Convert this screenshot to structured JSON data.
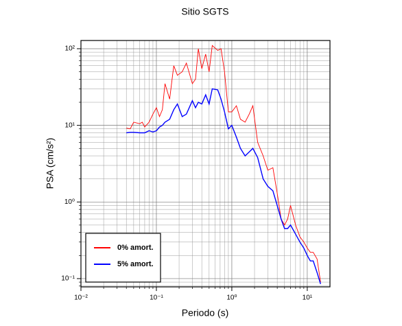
{
  "chart_data": {
    "type": "line",
    "title": "Sitio SGTS",
    "x_label": "Periodo (s)",
    "y_label": "PSA (cm/s²)",
    "log_x": true,
    "log_y": true,
    "grid": true,
    "legend": "lower left",
    "xlim": [
      0.01,
      20
    ],
    "ylim": [
      0.078,
      128
    ],
    "xticks": [
      {
        "value": 0.01,
        "label": "10⁻²"
      },
      {
        "value": 0.1,
        "label": "10⁻¹"
      },
      {
        "value": 1,
        "label": "10⁰"
      },
      {
        "value": 10,
        "label": "10¹"
      }
    ],
    "yticks": [
      {
        "value": 0.1,
        "label": "10⁻¹"
      },
      {
        "value": 1,
        "label": "10⁰"
      },
      {
        "value": 10,
        "label": "10¹"
      },
      {
        "value": 100,
        "label": "10²"
      }
    ],
    "x": [
      0.04,
      0.045,
      0.05,
      0.06,
      0.065,
      0.07,
      0.08,
      0.09,
      0.1,
      0.11,
      0.12,
      0.13,
      0.15,
      0.17,
      0.19,
      0.22,
      0.25,
      0.3,
      0.33,
      0.36,
      0.4,
      0.45,
      0.5,
      0.55,
      0.65,
      0.72,
      0.8,
      0.9,
      1.0,
      1.15,
      1.3,
      1.5,
      1.7,
      1.9,
      2.2,
      2.6,
      3,
      3.5,
      4,
      4.5,
      5,
      5.5,
      6,
      7,
      8,
      9,
      10,
      11,
      12,
      13.5,
      15
    ],
    "series": [
      {
        "name": "0% amort.",
        "color": "#ff0000",
        "values": [
          9.2,
          9,
          11,
          10.5,
          11,
          9.5,
          11,
          14,
          17,
          13,
          16,
          35,
          22,
          60,
          45,
          50,
          65,
          35,
          40,
          100,
          55,
          85,
          50,
          110,
          95,
          100,
          50,
          15,
          15,
          18,
          12,
          11,
          14,
          18,
          6,
          4,
          2.6,
          2.8,
          1.3,
          0.6,
          0.5,
          0.6,
          0.9,
          0.5,
          0.35,
          0.3,
          0.25,
          0.22,
          0.22,
          0.18,
          0.09
        ]
      },
      {
        "name": "5% amort.",
        "color": "#0000ff",
        "values": [
          8,
          8.1,
          8.1,
          8,
          8,
          8,
          8.5,
          8.2,
          8.5,
          9.5,
          10,
          11,
          12,
          16,
          19,
          13,
          14,
          21,
          17,
          20,
          19,
          25,
          19,
          30,
          29,
          22,
          15,
          9,
          10,
          7,
          5,
          4,
          4.5,
          5,
          3.8,
          2,
          1.6,
          1.4,
          0.9,
          0.6,
          0.45,
          0.45,
          0.5,
          0.38,
          0.3,
          0.25,
          0.2,
          0.17,
          0.17,
          0.12,
          0.085
        ]
      }
    ]
  }
}
